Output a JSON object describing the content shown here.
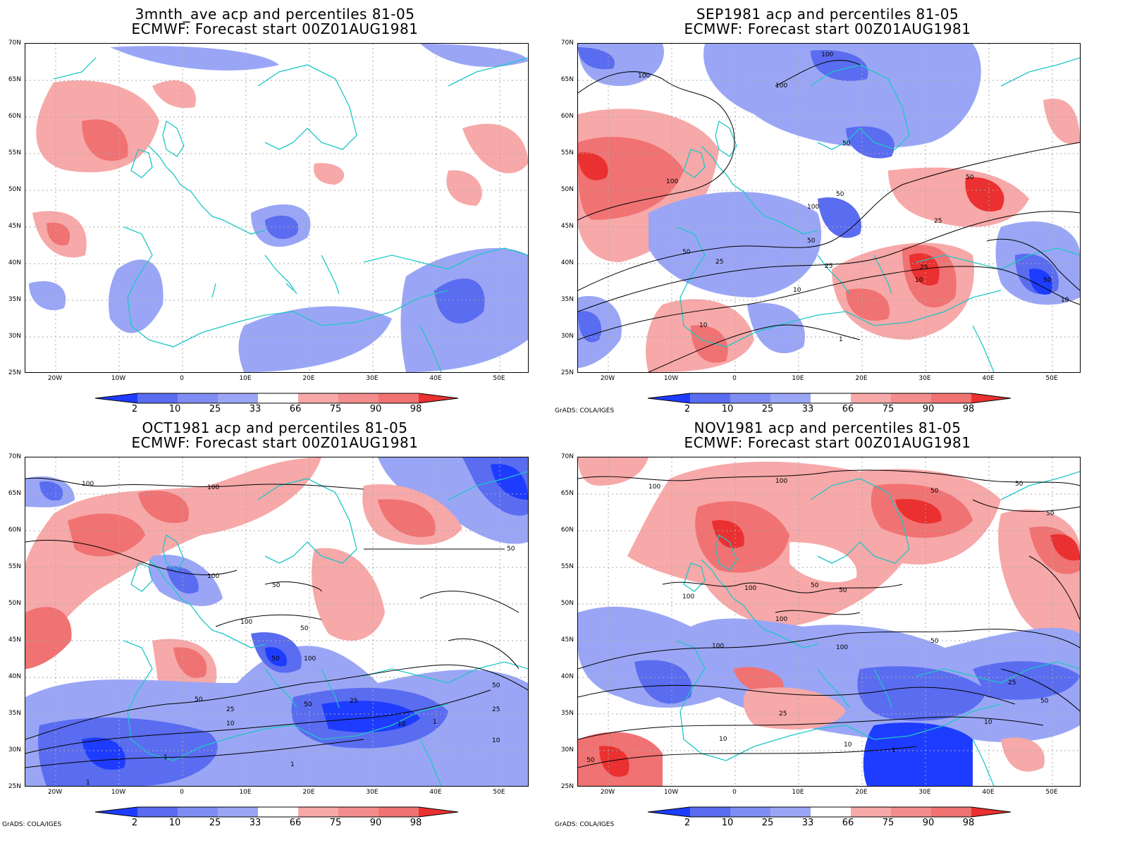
{
  "colors": {
    "blue_dark": "#1e3cff",
    "blue_mid": "#5a6cf0",
    "blue_light": "#9aa6f5",
    "red_light": "#f7a8a8",
    "red_mid": "#f07272",
    "red_dark": "#ea3030",
    "coast": "#1fc6c6",
    "grid": "#aaaaaa"
  },
  "latitude_labels": [
    "70N",
    "65N",
    "60N",
    "55N",
    "50N",
    "45N",
    "40N",
    "35N",
    "30N",
    "25N"
  ],
  "longitude_labels": [
    "20W",
    "10W",
    "0",
    "10E",
    "20E",
    "30E",
    "40E",
    "50E"
  ],
  "colorbar_labels": [
    "2",
    "10",
    "25",
    "33",
    "66",
    "75",
    "90",
    "98"
  ],
  "credit": "GrADS: COLA/IGES",
  "panels": [
    {
      "title1": "3mnth_ave acp and percentiles 81-05",
      "title2": "ECMWF: Forecast start 00Z01AUG1981"
    },
    {
      "title1": "SEP1981 acp and percentiles 81-05",
      "title2": "ECMWF: Forecast start 00Z01AUG1981"
    },
    {
      "title1": "OCT1981 acp and percentiles 81-05",
      "title2": "ECMWF: Forecast start 00Z01AUG1981"
    },
    {
      "title1": "NOV1981 acp and percentiles 81-05",
      "title2": "ECMWF: Forecast start 00Z01AUG1981"
    }
  ],
  "contour_labels": {
    "sep": [
      "100",
      "100",
      "100",
      "50",
      "100",
      "50",
      "100",
      "50",
      "25",
      "50",
      "50",
      "25",
      "25",
      "10",
      "10",
      "50",
      "25",
      "10",
      "1",
      "10"
    ],
    "oct": [
      "100",
      "100",
      "100",
      "50",
      "50",
      "100",
      "100",
      "50",
      "50",
      "50",
      "25",
      "50",
      "25",
      "10",
      "1",
      "10",
      "1",
      "1",
      "1",
      "10",
      "25",
      "50"
    ],
    "nov": [
      "100",
      "100",
      "50",
      "50",
      "50",
      "100",
      "100",
      "50",
      "100",
      "50",
      "100",
      "100",
      "50",
      "25",
      "50",
      "25",
      "10",
      "10",
      "1",
      "10",
      "50"
    ]
  }
}
